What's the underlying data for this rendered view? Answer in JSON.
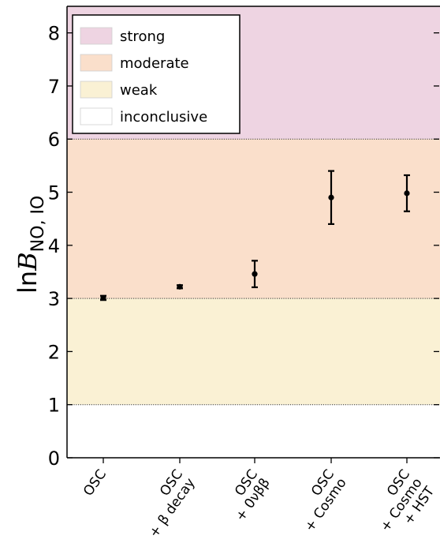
{
  "chart_data": {
    "type": "scatter",
    "ylabel": {
      "prefix": "ln",
      "symbol": "B",
      "subscript": "NO, IO"
    },
    "ylim": [
      0,
      8.5
    ],
    "yticks": [
      0,
      1,
      2,
      3,
      4,
      5,
      6,
      7,
      8
    ],
    "categories": [
      [
        "OSC"
      ],
      [
        "OSC",
        "+ β decay"
      ],
      [
        "OSC",
        "+ 0νββ"
      ],
      [
        "OSC",
        "+ Cosmo"
      ],
      [
        "OSC",
        "+ Cosmo",
        "+ HST"
      ]
    ],
    "points": [
      {
        "y": 3.01,
        "err_low": 0.04,
        "err_high": 0.04
      },
      {
        "y": 3.22,
        "err_low": 0.03,
        "err_high": 0.03
      },
      {
        "y": 3.46,
        "err_low": 0.25,
        "err_high": 0.25
      },
      {
        "y": 4.9,
        "err_low": 0.5,
        "err_high": 0.5
      },
      {
        "y": 4.98,
        "err_low": 0.34,
        "err_high": 0.34
      }
    ],
    "bands": [
      {
        "label": "strong",
        "from": 6,
        "to": 8.5,
        "color": "#eed4e2"
      },
      {
        "label": "moderate",
        "from": 3,
        "to": 6,
        "color": "#fadfcb"
      },
      {
        "label": "weak",
        "from": 1,
        "to": 3,
        "color": "#faf1d4"
      },
      {
        "label": "inconclusive",
        "from": 0,
        "to": 1,
        "color": "#ffffff"
      }
    ],
    "legend": {
      "position": "top-left"
    },
    "grid": false
  }
}
